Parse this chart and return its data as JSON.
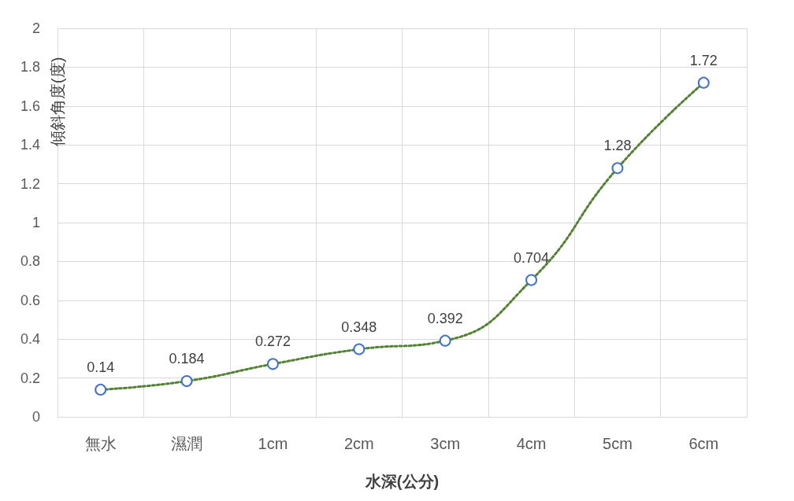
{
  "chart_data": {
    "type": "line",
    "xlabel": "水深(公分)",
    "ylabel": "傾斜角度(度)",
    "categories": [
      "無水",
      "濕潤",
      "1cm",
      "2cm",
      "3cm",
      "4cm",
      "5cm",
      "6cm"
    ],
    "series": [
      {
        "color": "#548235",
        "values": [
          0.14,
          0.184,
          0.272,
          0.348,
          0.392,
          0.704,
          1.28,
          1.72
        ]
      }
    ],
    "ylim": [
      0,
      2
    ],
    "yticks": [
      0,
      0.2,
      0.4,
      0.6,
      0.8,
      1,
      1.2,
      1.4,
      1.6,
      1.8,
      2
    ],
    "grid": true,
    "marker": "circle",
    "line_style": "dotted",
    "data_labels": true
  }
}
